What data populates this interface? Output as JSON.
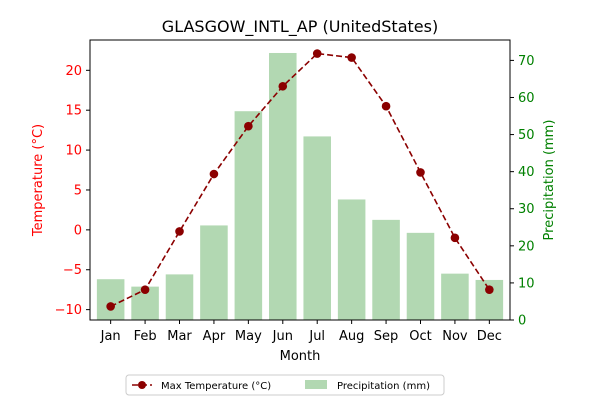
{
  "chart_data": {
    "type": "bar+line",
    "title": "GLASGOW_INTL_AP (UnitedStates)",
    "xlabel": "Month",
    "ylabel_left": "Temperature (°C)",
    "ylabel_right": "Precipitation (mm)",
    "categories": [
      "Jan",
      "Feb",
      "Mar",
      "Apr",
      "May",
      "Jun",
      "Jul",
      "Aug",
      "Sep",
      "Oct",
      "Nov",
      "Dec"
    ],
    "ylim_left": [
      -11.3,
      23.8
    ],
    "ylim_right": [
      0,
      75.5
    ],
    "yticks_left": [
      -10,
      -5,
      0,
      5,
      10,
      15,
      20
    ],
    "yticks_right": [
      0,
      10,
      20,
      30,
      40,
      50,
      60,
      70
    ],
    "legend_position": "bottom-center",
    "series": [
      {
        "name": "Precipitation (mm)",
        "type": "bar",
        "axis": "right",
        "color": "#b2d8b2",
        "values": [
          11.0,
          9.0,
          12.3,
          25.5,
          56.3,
          72.0,
          49.5,
          32.5,
          27.0,
          23.5,
          12.5,
          10.8
        ]
      },
      {
        "name": "Max Temperature (°C)",
        "type": "line",
        "axis": "left",
        "color": "#8b0000",
        "linestyle": "dashed",
        "marker": "circle",
        "values": [
          -9.6,
          -7.5,
          -0.2,
          7.0,
          13.0,
          18.0,
          22.1,
          21.6,
          15.5,
          7.2,
          -1.0,
          -7.5
        ]
      }
    ],
    "colors": {
      "left_axis": "#ff0000",
      "right_axis": "#008000",
      "text": "#000000"
    }
  }
}
